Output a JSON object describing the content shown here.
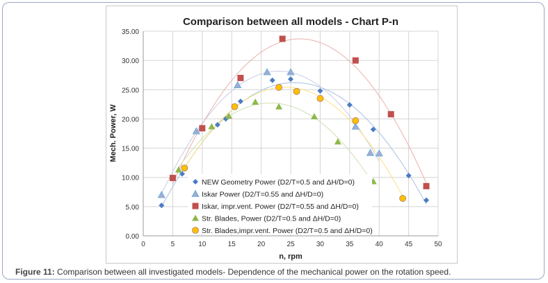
{
  "caption": {
    "label": "Figure 11:",
    "text": " Comparison between all investigated models- Dependence of the mechanical power on the rotation speed."
  },
  "chart_data": {
    "type": "scatter",
    "title": "Comparison between all models - Chart P-n",
    "xlabel": "n, rpm",
    "ylabel": "Mech. Power, W",
    "xlim": [
      0,
      50
    ],
    "ylim": [
      0,
      35
    ],
    "xticks": [
      "0",
      "5",
      "10",
      "15",
      "20",
      "25",
      "30",
      "35",
      "40",
      "45",
      "50"
    ],
    "yticks": [
      "0.00",
      "5.00",
      "10.00",
      "15.00",
      "20.00",
      "25.00",
      "30.00",
      "35.00"
    ],
    "grid": true,
    "legend": "inside-bottom-center",
    "trendlines": "polynomial",
    "series": [
      {
        "name": "NEW Geometry Power (D2/T=0.5 and ΔH/D=0)",
        "marker": "diamond",
        "color": "#4a7cc4",
        "line": "#a9c0e4",
        "points": [
          [
            3.1,
            5.2
          ],
          [
            6.6,
            10.6
          ],
          [
            12.6,
            19.0
          ],
          [
            14,
            20.0
          ],
          [
            16.5,
            23.0
          ],
          [
            21.9,
            26.6
          ],
          [
            25,
            26.8
          ],
          [
            30,
            24.8
          ],
          [
            35,
            22.4
          ],
          [
            39,
            18.2
          ],
          [
            45,
            10.3
          ],
          [
            48,
            6.1
          ]
        ]
      },
      {
        "name": "Iskar  Power (D2/T=0.55 and ΔH/D=0)",
        "marker": "triangle",
        "color": "#a7a9d0",
        "stroke": "#5ab4dc",
        "line": "#c8cbe6",
        "points": [
          [
            3.1,
            7.0
          ],
          [
            9,
            17.9
          ],
          [
            16,
            25.8
          ],
          [
            21,
            28.0
          ],
          [
            25,
            28.0
          ],
          [
            36,
            18.7
          ],
          [
            38.5,
            14.2
          ],
          [
            40,
            14.1
          ]
        ]
      },
      {
        "name": "Iskar, impr.vent. Power (D2/T=0.55 and ΔH/D=0)",
        "marker": "square",
        "color": "#c0504d",
        "line": "#eab0ae",
        "points": [
          [
            5,
            9.9
          ],
          [
            10,
            18.4
          ],
          [
            16.5,
            27.0
          ],
          [
            23.6,
            33.7
          ],
          [
            36,
            30.0
          ],
          [
            42,
            20.8
          ],
          [
            48,
            8.5
          ]
        ]
      },
      {
        "name": "Str. Blades, Power (D2/T=0.5 and ΔH/D=0)",
        "marker": "triangle",
        "color": "#8db84a",
        "line": "#cfe0b0",
        "points": [
          [
            6,
            11.3
          ],
          [
            11.6,
            18.7
          ],
          [
            14.5,
            20.5
          ],
          [
            19,
            22.9
          ],
          [
            23,
            22.1
          ],
          [
            29,
            20.4
          ],
          [
            33,
            16.1
          ],
          [
            39,
            9.3
          ]
        ]
      },
      {
        "name": "Str. Blades,impr.vent. Power (D2/T=0.5 and ΔH/D=0)",
        "marker": "circle",
        "color": "#ffc000",
        "stroke": "#a87c6c",
        "line": "#ffe080",
        "points": [
          [
            7,
            11.6
          ],
          [
            15.5,
            22.1
          ],
          [
            23,
            25.4
          ],
          [
            26,
            24.7
          ],
          [
            30,
            23.5
          ],
          [
            36,
            19.7
          ],
          [
            44,
            6.4
          ]
        ]
      }
    ]
  }
}
